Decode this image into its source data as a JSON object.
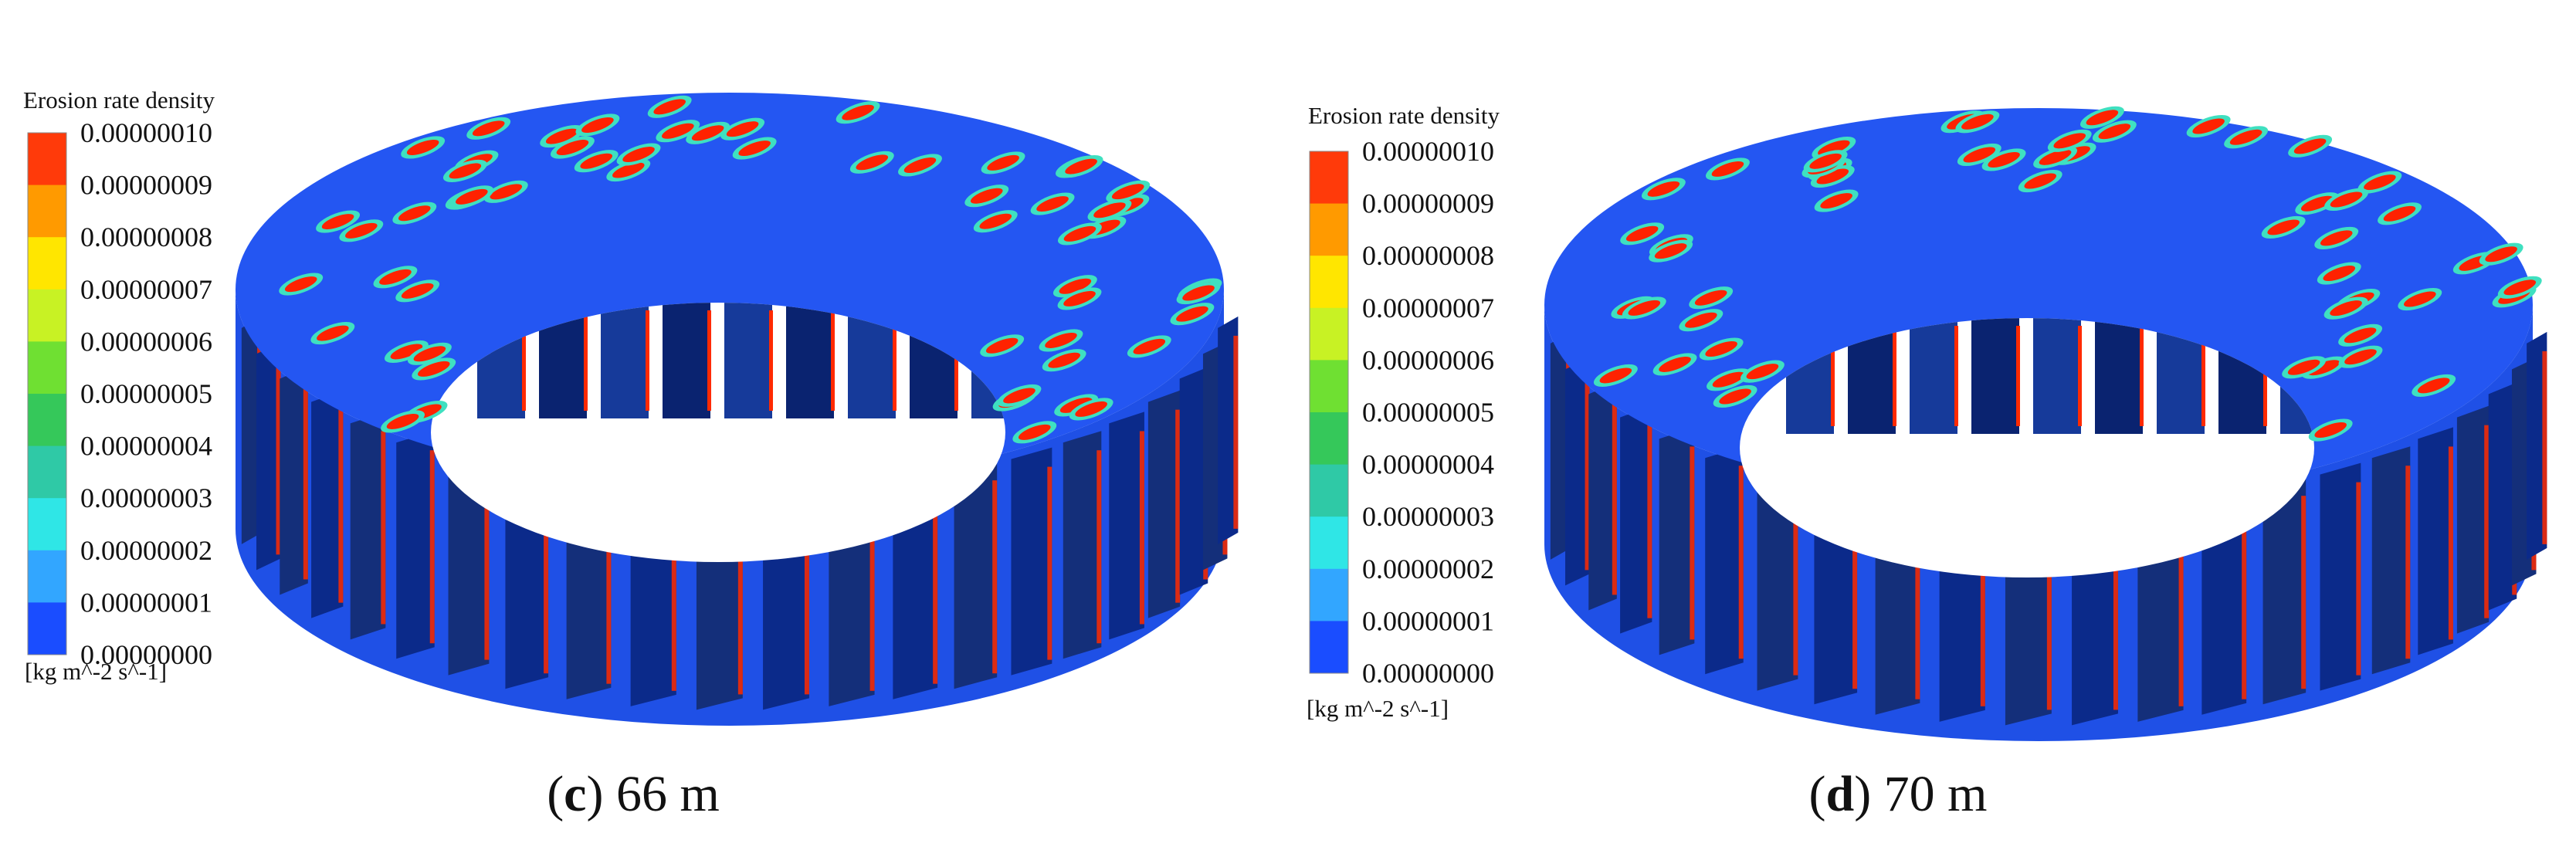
{
  "panels": [
    {
      "legend": {
        "title": "Erosion rate density",
        "ticks": [
          "0.00000010",
          "0.00000009",
          "0.00000008",
          "0.00000007",
          "0.00000006",
          "0.00000005",
          "0.00000004",
          "0.00000003",
          "0.00000002",
          "0.00000001",
          "0.00000000"
        ],
        "unit": "[kg m^-2 s^-1]"
      },
      "caption": {
        "open": "(",
        "letter": "c",
        "rest": ") 66 m"
      }
    },
    {
      "legend": {
        "title": "Erosion rate density",
        "ticks": [
          "0.00000010",
          "0.00000009",
          "0.00000008",
          "0.00000007",
          "0.00000006",
          "0.00000005",
          "0.00000004",
          "0.00000003",
          "0.00000002",
          "0.00000001",
          "0.00000000"
        ],
        "unit": "[kg m^-2 s^-1]"
      },
      "caption": {
        "open": "(",
        "letter": "d",
        "rest": ") 70 m"
      }
    }
  ]
}
